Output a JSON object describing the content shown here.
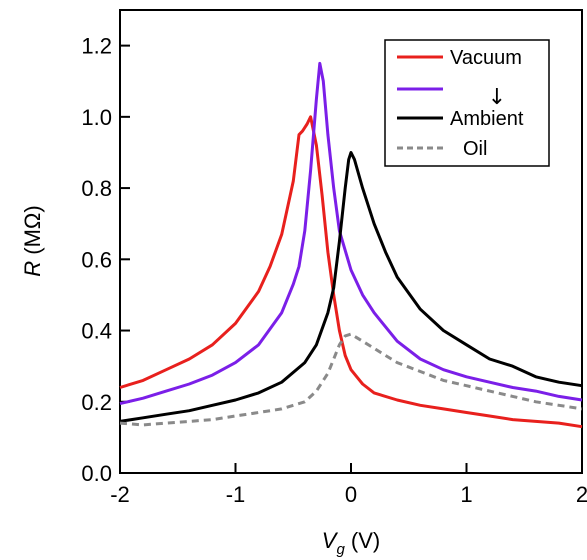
{
  "chart_data": {
    "type": "line",
    "title": "",
    "xlabel": {
      "symbol": "V",
      "subscript": "g",
      "unit": " (V)"
    },
    "ylabel": {
      "symbol": "R",
      "unit": " (MΩ)"
    },
    "xlim": [
      -2,
      2
    ],
    "ylim": [
      0.0,
      1.3
    ],
    "x_ticks": [
      -2,
      -1,
      0,
      1,
      2
    ],
    "x_tick_labels": [
      "-2",
      "-1",
      "0",
      "1",
      "2"
    ],
    "y_ticks": [
      0.0,
      0.2,
      0.4,
      0.6,
      0.8,
      1.0,
      1.2
    ],
    "y_tick_labels": [
      "0.0",
      "0.2",
      "0.4",
      "0.6",
      "0.8",
      "1.0",
      "1.2"
    ],
    "grid": false,
    "legend_position": "top-right",
    "legend_arrow": "↓",
    "series": [
      {
        "name": "Vacuum",
        "color": "#e8201d",
        "style": "solid",
        "points": [
          [
            -2.0,
            0.24
          ],
          [
            -1.8,
            0.26
          ],
          [
            -1.6,
            0.29
          ],
          [
            -1.4,
            0.32
          ],
          [
            -1.2,
            0.36
          ],
          [
            -1.0,
            0.42
          ],
          [
            -0.8,
            0.51
          ],
          [
            -0.7,
            0.58
          ],
          [
            -0.6,
            0.67
          ],
          [
            -0.5,
            0.82
          ],
          [
            -0.45,
            0.95
          ],
          [
            -0.42,
            0.96
          ],
          [
            -0.38,
            0.98
          ],
          [
            -0.35,
            1.0
          ],
          [
            -0.3,
            0.92
          ],
          [
            -0.25,
            0.78
          ],
          [
            -0.2,
            0.62
          ],
          [
            -0.15,
            0.5
          ],
          [
            -0.1,
            0.4
          ],
          [
            -0.05,
            0.33
          ],
          [
            0.0,
            0.29
          ],
          [
            0.1,
            0.25
          ],
          [
            0.2,
            0.225
          ],
          [
            0.4,
            0.205
          ],
          [
            0.6,
            0.19
          ],
          [
            0.8,
            0.18
          ],
          [
            1.0,
            0.17
          ],
          [
            1.2,
            0.16
          ],
          [
            1.4,
            0.15
          ],
          [
            1.6,
            0.145
          ],
          [
            1.8,
            0.14
          ],
          [
            2.0,
            0.13
          ]
        ]
      },
      {
        "name": "",
        "color": "#7b1fe8",
        "style": "solid",
        "points": [
          [
            -2.0,
            0.195
          ],
          [
            -1.8,
            0.21
          ],
          [
            -1.6,
            0.23
          ],
          [
            -1.4,
            0.25
          ],
          [
            -1.2,
            0.275
          ],
          [
            -1.0,
            0.31
          ],
          [
            -0.8,
            0.36
          ],
          [
            -0.6,
            0.45
          ],
          [
            -0.5,
            0.53
          ],
          [
            -0.45,
            0.58
          ],
          [
            -0.4,
            0.68
          ],
          [
            -0.35,
            0.85
          ],
          [
            -0.3,
            1.05
          ],
          [
            -0.27,
            1.15
          ],
          [
            -0.24,
            1.1
          ],
          [
            -0.2,
            0.95
          ],
          [
            -0.15,
            0.8
          ],
          [
            -0.1,
            0.68
          ],
          [
            0.0,
            0.57
          ],
          [
            0.1,
            0.5
          ],
          [
            0.2,
            0.45
          ],
          [
            0.4,
            0.37
          ],
          [
            0.6,
            0.32
          ],
          [
            0.8,
            0.29
          ],
          [
            1.0,
            0.27
          ],
          [
            1.2,
            0.255
          ],
          [
            1.4,
            0.24
          ],
          [
            1.6,
            0.23
          ],
          [
            1.8,
            0.215
          ],
          [
            2.0,
            0.205
          ]
        ]
      },
      {
        "name": "Ambient",
        "color": "#000000",
        "style": "solid",
        "points": [
          [
            -2.0,
            0.145
          ],
          [
            -1.8,
            0.155
          ],
          [
            -1.6,
            0.165
          ],
          [
            -1.4,
            0.175
          ],
          [
            -1.2,
            0.19
          ],
          [
            -1.0,
            0.205
          ],
          [
            -0.8,
            0.225
          ],
          [
            -0.6,
            0.255
          ],
          [
            -0.4,
            0.31
          ],
          [
            -0.3,
            0.36
          ],
          [
            -0.2,
            0.45
          ],
          [
            -0.15,
            0.52
          ],
          [
            -0.1,
            0.65
          ],
          [
            -0.05,
            0.8
          ],
          [
            -0.02,
            0.88
          ],
          [
            0.0,
            0.9
          ],
          [
            0.03,
            0.88
          ],
          [
            0.1,
            0.8
          ],
          [
            0.2,
            0.7
          ],
          [
            0.3,
            0.62
          ],
          [
            0.4,
            0.55
          ],
          [
            0.6,
            0.46
          ],
          [
            0.8,
            0.4
          ],
          [
            1.0,
            0.36
          ],
          [
            1.2,
            0.32
          ],
          [
            1.4,
            0.3
          ],
          [
            1.6,
            0.27
          ],
          [
            1.8,
            0.255
          ],
          [
            2.0,
            0.245
          ]
        ]
      },
      {
        "name": "Oil",
        "color": "#8a8a8a",
        "style": "dashed",
        "points": [
          [
            -2.0,
            0.14
          ],
          [
            -1.8,
            0.135
          ],
          [
            -1.6,
            0.14
          ],
          [
            -1.4,
            0.145
          ],
          [
            -1.2,
            0.15
          ],
          [
            -1.0,
            0.16
          ],
          [
            -0.8,
            0.17
          ],
          [
            -0.6,
            0.18
          ],
          [
            -0.4,
            0.2
          ],
          [
            -0.3,
            0.23
          ],
          [
            -0.2,
            0.28
          ],
          [
            -0.15,
            0.32
          ],
          [
            -0.1,
            0.36
          ],
          [
            -0.05,
            0.385
          ],
          [
            0.0,
            0.39
          ],
          [
            0.05,
            0.38
          ],
          [
            0.1,
            0.37
          ],
          [
            0.2,
            0.35
          ],
          [
            0.3,
            0.33
          ],
          [
            0.4,
            0.31
          ],
          [
            0.6,
            0.285
          ],
          [
            0.8,
            0.26
          ],
          [
            1.0,
            0.245
          ],
          [
            1.2,
            0.23
          ],
          [
            1.4,
            0.215
          ],
          [
            1.6,
            0.2
          ],
          [
            1.8,
            0.19
          ],
          [
            2.0,
            0.18
          ]
        ]
      }
    ]
  }
}
